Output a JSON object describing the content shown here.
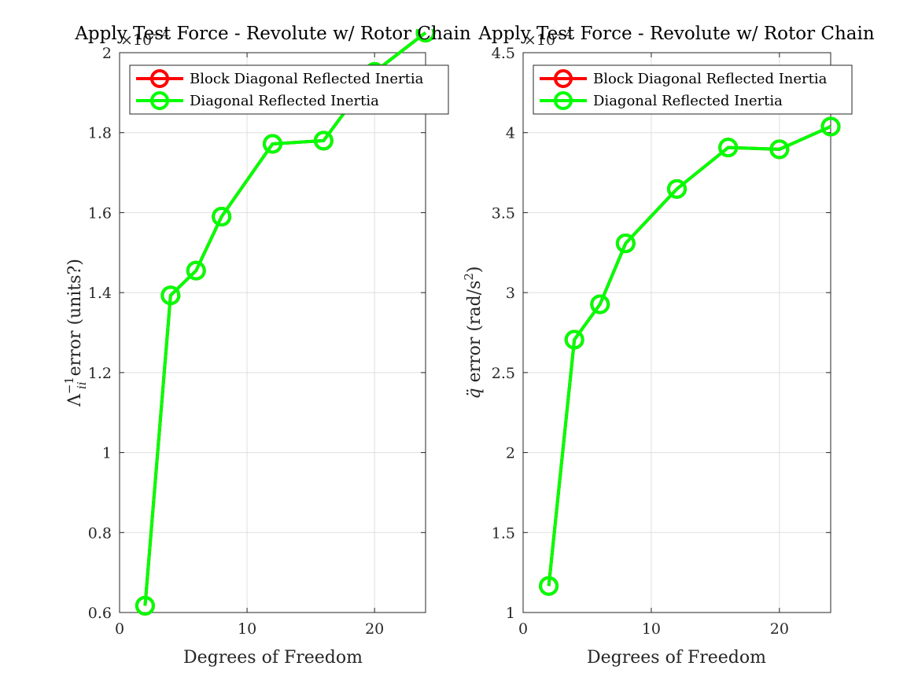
{
  "figure": {
    "background": "#ffffff",
    "grid": true,
    "legend_placement": "top-left"
  },
  "chart_data": [
    {
      "type": "line",
      "title": "Apply Test Force - Revolute w/ Rotor Chain",
      "xlabel": "Degrees of Freedom",
      "ylabel": "Λ_ii^-1 error (units?)",
      "ylabel_parts": {
        "symbol": "Λ",
        "sup": "−1",
        "sub": "ii",
        "rest": " error (units?)"
      },
      "y_exponent": {
        "base": "×10",
        "power": "−4"
      },
      "xlim": [
        0,
        24
      ],
      "ylim": [
        0.6,
        2.0
      ],
      "xticks": [
        0,
        10,
        20
      ],
      "yticks": [
        0.6,
        0.8,
        1.0,
        1.2,
        1.4,
        1.6,
        1.8,
        2.0
      ],
      "ytick_labels": [
        "0.6",
        "0.8",
        "1",
        "1.2",
        "1.4",
        "1.6",
        "1.8",
        "2"
      ],
      "series": [
        {
          "name": "Block Diagonal Reflected Inertia",
          "color": "#ff0000",
          "marker": "circle",
          "x": [
            2,
            4,
            6,
            8,
            12,
            16,
            20,
            24
          ],
          "y": [
            0.617,
            1.393,
            1.455,
            1.59,
            1.772,
            1.78,
            1.952,
            2.05
          ]
        },
        {
          "name": "Diagonal Reflected Inertia",
          "color": "#00ff00",
          "marker": "circle",
          "x": [
            2,
            4,
            6,
            8,
            12,
            16,
            20,
            24
          ],
          "y": [
            0.617,
            1.393,
            1.455,
            1.59,
            1.772,
            1.78,
            1.952,
            2.05
          ]
        }
      ]
    },
    {
      "type": "line",
      "title": "Apply Test Force - Revolute w/ Rotor Chain",
      "xlabel": "Degrees of Freedom",
      "ylabel": "q̈ error (rad/s²)",
      "ylabel_parts": {
        "symbol": "q̈",
        "rest": " error (rad/s",
        "sup": "2",
        "close": ")"
      },
      "y_exponent": {
        "base": "×10",
        "power": "−4"
      },
      "xlim": [
        0,
        24
      ],
      "ylim": [
        1.0,
        4.5
      ],
      "xticks": [
        0,
        10,
        20
      ],
      "yticks": [
        1.0,
        1.5,
        2.0,
        2.5,
        3.0,
        3.5,
        4.0,
        4.5
      ],
      "ytick_labels": [
        "1",
        "1.5",
        "2",
        "2.5",
        "3",
        "3.5",
        "4",
        "4.5"
      ],
      "series": [
        {
          "name": "Block Diagonal Reflected Inertia",
          "color": "#ff0000",
          "marker": "circle",
          "x": [
            2,
            4,
            6,
            8,
            12,
            16,
            20,
            24
          ],
          "y": [
            1.166,
            2.706,
            2.927,
            3.308,
            3.648,
            3.907,
            3.896,
            4.038
          ]
        },
        {
          "name": "Diagonal Reflected Inertia",
          "color": "#00ff00",
          "marker": "circle",
          "x": [
            2,
            4,
            6,
            8,
            12,
            16,
            20,
            24
          ],
          "y": [
            1.166,
            2.706,
            2.927,
            3.308,
            3.648,
            3.907,
            3.896,
            4.038
          ]
        }
      ]
    }
  ]
}
